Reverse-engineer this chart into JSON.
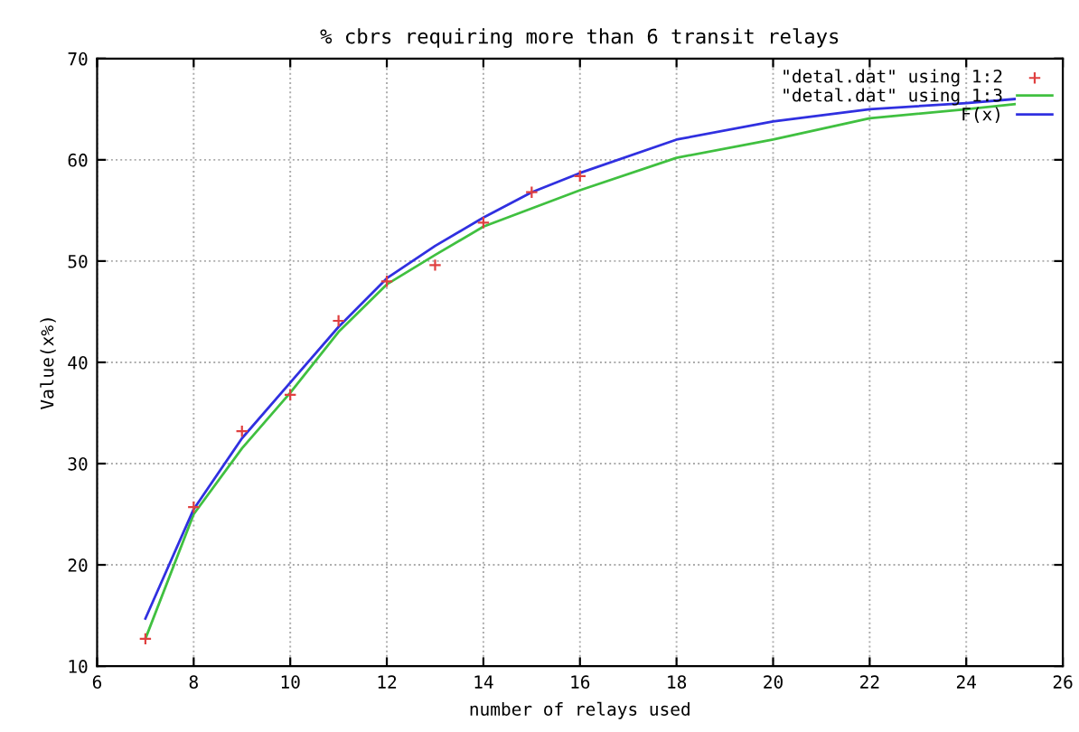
{
  "chart_data": {
    "type": "line",
    "title": "% cbrs requiring more than 6 transit relays",
    "xlabel": "number of relays used",
    "ylabel": "Value(x%)",
    "xlim": [
      6,
      26
    ],
    "ylim": [
      10,
      70
    ],
    "xticks": [
      6,
      8,
      10,
      12,
      14,
      16,
      18,
      20,
      22,
      24,
      26
    ],
    "yticks": [
      10,
      20,
      30,
      40,
      50,
      60,
      70
    ],
    "grid": true,
    "legend": "top right",
    "line_style": "solid",
    "series": [
      {
        "name": "\"detal.dat\" using 1:2",
        "type": "scatter",
        "marker": "cross",
        "color": "#e04040",
        "x": [
          7,
          8,
          9,
          10,
          11,
          12,
          13,
          14,
          15,
          16
        ],
        "values": [
          12.7,
          25.7,
          33.2,
          36.8,
          44.1,
          48.0,
          49.6,
          53.8,
          56.8,
          58.4
        ]
      },
      {
        "name": "\"detal.dat\" using 1:3",
        "type": "line",
        "color": "#40c040",
        "x": [
          7,
          8,
          9,
          10,
          11,
          12,
          13,
          14,
          16,
          18,
          20,
          22,
          24,
          25
        ],
        "values": [
          12.7,
          25,
          31.5,
          37,
          43,
          47.7,
          50.6,
          53.4,
          57.0,
          60.2,
          62.0,
          64.1,
          65.0,
          65.5
        ]
      },
      {
        "name": "F(x)",
        "color": "#3030e0",
        "x": [
          7,
          8,
          9,
          10,
          11,
          12,
          13,
          14,
          15,
          16,
          18,
          20,
          22,
          24,
          25
        ],
        "values": [
          14.7,
          25.5,
          32.5,
          38,
          43.5,
          48.3,
          51.5,
          54.3,
          56.8,
          58.7,
          62.0,
          63.8,
          65.0,
          65.6,
          66.0
        ]
      }
    ]
  }
}
